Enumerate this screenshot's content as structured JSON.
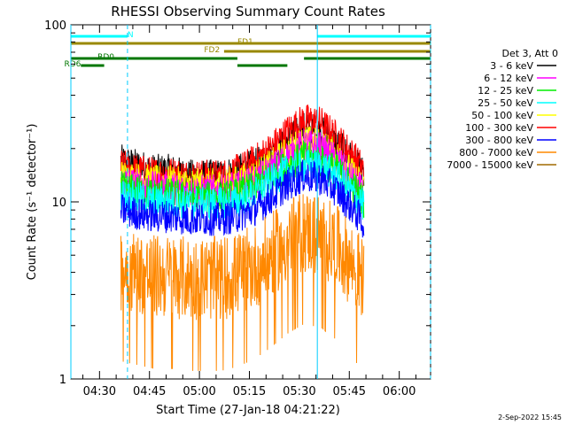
{
  "chart_data": {
    "type": "line",
    "title": "RHESSI Observing Summary Count Rates",
    "xlabel": "Start Time (27-Jan-18 04:21:22)",
    "ylabel": "Count Rate (s⁻¹ detector⁻¹)",
    "yscale": "log",
    "ylim": [
      1,
      100
    ],
    "xlim_minutes": [
      0,
      108
    ],
    "x_ticks": [
      {
        "label": "04:30",
        "min": 8.6
      },
      {
        "label": "04:45",
        "min": 23.6
      },
      {
        "label": "05:00",
        "min": 38.6
      },
      {
        "label": "05:15",
        "min": 53.6
      },
      {
        "label": "05:30",
        "min": 68.6
      },
      {
        "label": "05:45",
        "min": 83.6
      },
      {
        "label": "06:00",
        "min": 98.6
      }
    ],
    "y_ticks": [
      {
        "label": "1",
        "value": 1
      },
      {
        "label": "10",
        "value": 10
      },
      {
        "label": "100",
        "value": 100
      }
    ],
    "legend_title": "Det 3, Att 0",
    "legend_position": "right",
    "series": [
      {
        "name": "3 - 6 keV",
        "color": "#000000",
        "x": [
          15,
          20,
          25,
          30,
          35,
          40,
          45,
          50,
          55,
          60,
          65,
          70,
          75,
          80,
          85,
          88
        ],
        "y": [
          17,
          16,
          15,
          15,
          14,
          14,
          14,
          15,
          16,
          18,
          22,
          26,
          25,
          21,
          17,
          14
        ]
      },
      {
        "name": "6 - 12 keV",
        "color": "#ff00ff",
        "x": [
          15,
          20,
          25,
          30,
          35,
          40,
          45,
          50,
          55,
          60,
          65,
          70,
          75,
          80,
          85,
          88
        ],
        "y": [
          13,
          12.5,
          12,
          12,
          11.5,
          11.5,
          11.5,
          12,
          13,
          15,
          18,
          21,
          20,
          17,
          13,
          11
        ]
      },
      {
        "name": "12 - 25 keV",
        "color": "#00ee00",
        "x": [
          15,
          20,
          25,
          30,
          35,
          40,
          45,
          50,
          55,
          60,
          65,
          70,
          75,
          80,
          85,
          88
        ],
        "y": [
          12,
          11.5,
          11,
          11,
          10.5,
          10.5,
          10.5,
          11,
          12,
          14,
          16,
          18,
          17,
          15,
          12,
          10
        ]
      },
      {
        "name": "25 - 50 keV",
        "color": "#00ffff",
        "x": [
          15,
          20,
          25,
          30,
          35,
          40,
          45,
          50,
          55,
          60,
          65,
          70,
          75,
          80,
          85,
          88
        ],
        "y": [
          11,
          10.5,
          10,
          10,
          9.8,
          9.8,
          9.8,
          10,
          11,
          13,
          15,
          16,
          16,
          14,
          11,
          9.5
        ]
      },
      {
        "name": "50 - 100 keV",
        "color": "#ffff00",
        "x": [
          15,
          20,
          25,
          30,
          35,
          40,
          45,
          50,
          55,
          60,
          65,
          70,
          75,
          80,
          85,
          88
        ],
        "y": [
          14,
          13.5,
          13,
          13,
          12.5,
          12.5,
          12.5,
          13,
          14,
          16,
          19,
          22,
          21,
          18,
          14,
          12
        ]
      },
      {
        "name": "100 - 300 keV",
        "color": "#ff0000",
        "x": [
          15,
          20,
          25,
          30,
          35,
          40,
          45,
          50,
          55,
          60,
          65,
          70,
          75,
          80,
          85,
          88
        ],
        "y": [
          16,
          15,
          14.5,
          14.5,
          14,
          14,
          14,
          15,
          17,
          20,
          25,
          29,
          28,
          23,
          18,
          15
        ]
      },
      {
        "name": "300 - 800 keV",
        "color": "#0000ff",
        "x": [
          15,
          20,
          25,
          30,
          35,
          40,
          45,
          50,
          55,
          60,
          65,
          70,
          75,
          80,
          85,
          88
        ],
        "y": [
          9,
          8.6,
          8.3,
          8.3,
          8,
          8,
          8,
          8.3,
          9,
          10.5,
          12.5,
          14,
          13.5,
          11.5,
          9,
          7.5
        ]
      },
      {
        "name": "800 - 7000 keV",
        "color": "#ff8800",
        "x": [
          15,
          20,
          25,
          30,
          35,
          40,
          45,
          50,
          55,
          60,
          65,
          70,
          75,
          80,
          85,
          88
        ],
        "y": [
          4.2,
          4,
          3.8,
          3.8,
          3.7,
          3.7,
          3.7,
          3.9,
          4.3,
          5,
          6,
          6.8,
          6.5,
          5.5,
          4.3,
          3.6
        ]
      },
      {
        "name": "7000 - 15000 keV",
        "color": "#a06a00",
        "x": [],
        "y": []
      }
    ],
    "state_bars": [
      {
        "label": "N",
        "color": "#00ffff",
        "segments": [
          [
            0,
            17
          ],
          [
            74,
            108
          ]
        ]
      },
      {
        "label": "FD1",
        "color": "#998800",
        "segments": [
          [
            0,
            108
          ]
        ]
      },
      {
        "label": "FD2",
        "color": "#998800",
        "segments": [
          [
            46,
            108
          ]
        ]
      },
      {
        "label": "RD0",
        "color": "#007700",
        "segments": [
          [
            0,
            50
          ],
          [
            70,
            108
          ]
        ]
      },
      {
        "label": "RD6",
        "color": "#007700",
        "segments": [
          [
            3,
            10
          ],
          [
            50,
            65
          ]
        ]
      }
    ],
    "vlines": [
      {
        "min": 0,
        "style": "solid"
      },
      {
        "min": 17,
        "style": "dashed"
      },
      {
        "min": 74,
        "style": "solid"
      },
      {
        "min": 108,
        "style": "dashed"
      }
    ]
  },
  "footer": {
    "timestamp": "2-Sep-2022 15:45"
  }
}
